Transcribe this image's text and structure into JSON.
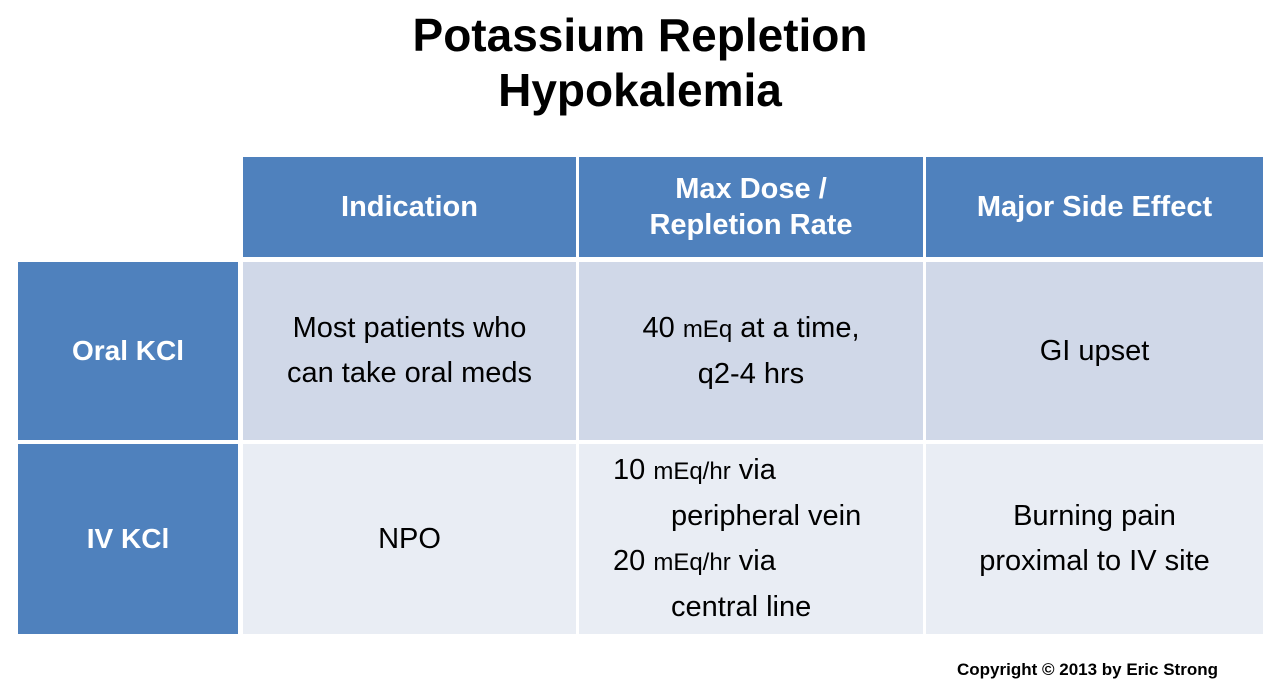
{
  "title": {
    "line1": "Potassium Repletion",
    "line2": "Hypokalemia"
  },
  "columns": {
    "indication": "Indication",
    "max_dose_line1": "Max Dose /",
    "max_dose_line2": "Repletion Rate",
    "side_effect": "Major Side Effect"
  },
  "rows": [
    {
      "label": "Oral KCl",
      "indication_line1": "Most patients who",
      "indication_line2": "can take oral meds",
      "dose_a_num": "40 ",
      "dose_a_unit": "mEq",
      "dose_a_rest": " at a time,",
      "dose_b": "q2-4 hrs",
      "side_effect": "GI upset"
    },
    {
      "label": "IV KCl",
      "indication": "NPO",
      "dose_a_num": "10 ",
      "dose_a_unit": "mEq/hr",
      "dose_a_rest": " via",
      "dose_a_line2": "peripheral vein",
      "dose_b_num": "20 ",
      "dose_b_unit": "mEq/hr",
      "dose_b_rest": " via",
      "dose_b_line2": "central line",
      "side_effect_line1": "Burning pain",
      "side_effect_line2": "proximal to IV site"
    }
  ],
  "copyright": "Copyright © 2013 by Eric Strong"
}
